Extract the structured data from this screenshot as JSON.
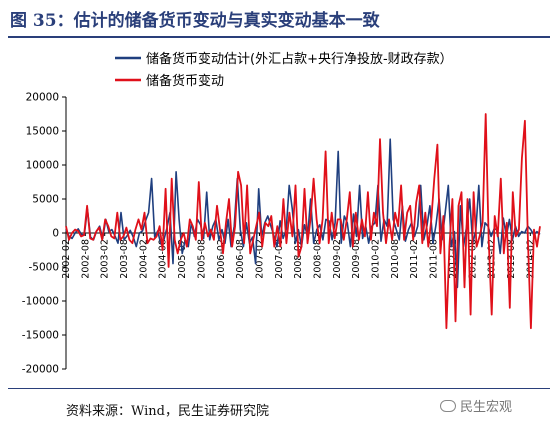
{
  "page": {
    "title": "图 35：估计的储备货币变动与真实变动基本一致",
    "source": "资料来源：Wind，民生证券研究院",
    "watermark": "民生宏观",
    "watermark_icon": "wechat-icon"
  },
  "chart_data": {
    "type": "line",
    "title": "",
    "xlabel": "",
    "ylabel": "",
    "ylim": [
      -20000,
      20000
    ],
    "yticks": [
      -20000,
      -15000,
      -10000,
      -5000,
      0,
      5000,
      10000,
      15000,
      20000
    ],
    "xtick_labels": [
      "2002-02",
      "2002-08",
      "2003-02",
      "2003-08",
      "2004-02",
      "2004-08",
      "2005-02",
      "2005-08",
      "2006-02",
      "2006-08",
      "2007-02",
      "2007-08",
      "2008-02",
      "2008-08",
      "2009-02",
      "2009-08",
      "2010-02",
      "2010-08",
      "2011-02",
      "2011-08",
      "2012-02",
      "2012-08",
      "2013-02",
      "2013-08",
      "2014-02"
    ],
    "x_start": "2002-02",
    "x_end": "2014-05",
    "grid": false,
    "legend_position": "top-right",
    "series": [
      {
        "name": "储备货币变动估计(外汇占款+央行净投放-财政存款）",
        "color": "#1f3f7f",
        "values": [
          500,
          -500,
          -800,
          0,
          600,
          -200,
          -300,
          3500,
          -600,
          -1000,
          300,
          1000,
          -800,
          2000,
          200,
          500,
          -400,
          -1500,
          3000,
          -1000,
          -400,
          400,
          -600,
          -2000,
          0,
          300,
          1800,
          3000,
          8000,
          -600,
          300,
          -1600,
          -1000,
          700,
          3000,
          -4500,
          9000,
          2000,
          -3000,
          -1000,
          -2000,
          1500,
          -500,
          2000,
          1200,
          -800,
          6000,
          -1000,
          1000,
          2000,
          -1000,
          500,
          -1500,
          2000,
          -2000,
          1000,
          8000,
          500,
          -2000,
          1500,
          -1500,
          -600,
          -4500,
          6500,
          -500,
          1500,
          2500,
          1000,
          -400,
          -2000,
          1800,
          -800,
          500,
          7000,
          3500,
          -1500,
          500,
          -2000,
          1200,
          -500,
          5000,
          -1500,
          500,
          1200,
          -1000,
          2000,
          1800,
          -1000,
          1500,
          12000,
          -1500,
          2500,
          1500,
          -2000,
          2800,
          -500,
          7000,
          -800,
          1000,
          -1500,
          1000,
          1500,
          7000,
          -1200,
          2000,
          1000,
          13800,
          2000,
          500,
          -1000,
          4000,
          -1200,
          500,
          1500,
          -500,
          1000,
          7000,
          -1000,
          1000,
          4000,
          -1500,
          1200,
          5000,
          -1000,
          3000,
          7000,
          -2000,
          200,
          -8000,
          4000,
          -2000,
          1000,
          5000,
          -1500,
          300,
          7000,
          -2000,
          1500,
          1000,
          -500,
          600,
          500,
          -3000,
          2200,
          -500,
          2000,
          -1000,
          1000,
          -500,
          200,
          0,
          1000,
          500,
          -300,
          200,
          -200
        ]
      },
      {
        "name": "储备货币变动",
        "color": "#e0101a",
        "values": [
          1000,
          -1000,
          0,
          500,
          300,
          -500,
          -300,
          4000,
          -800,
          -1000,
          200,
          800,
          -1000,
          2000,
          1000,
          -500,
          -800,
          3000,
          -1000,
          -500,
          800,
          -1000,
          -1500,
          500,
          2000,
          500,
          3000,
          -1500,
          -800,
          -1000,
          -500,
          1000,
          -2500,
          6500,
          -5000,
          8000,
          -1000,
          -3000,
          -1000,
          0,
          -2000,
          2000,
          1000,
          -1000,
          7500,
          -1000,
          1500,
          -500,
          500,
          -1000,
          4000,
          500,
          -3000,
          1500,
          5000,
          -2000,
          1000,
          9000,
          7000,
          -1500,
          7000,
          -3000,
          -1000,
          1000,
          3000,
          -2000,
          1500,
          1000,
          2500,
          -2000,
          1000,
          -2000,
          5000,
          -1500,
          3000,
          -500,
          7000,
          -3500,
          -2000,
          6500,
          -1500,
          2000,
          8000,
          2000,
          -1500,
          2000,
          12000,
          -1500,
          3000,
          -800,
          2000,
          2000,
          -1000,
          2000,
          6000,
          -2000,
          3000,
          -1000,
          2000,
          -500,
          6000,
          -1000,
          3000,
          1000,
          13800,
          3000,
          -1500,
          2000,
          -1000,
          3000,
          1000,
          7000,
          -1000,
          3000,
          4000,
          -1000,
          4500,
          7000,
          -1500,
          3000,
          -2000,
          2000,
          8000,
          13000,
          -3000,
          2500,
          -14000,
          -2000,
          5000,
          -13000,
          4000,
          6000,
          -8000,
          5000,
          -12000,
          6000,
          -2000,
          -500,
          1500,
          17500,
          -1000,
          -12000,
          2500,
          -500,
          8000,
          -3000,
          1500,
          -11000,
          6000,
          -500,
          500,
          11000,
          16500,
          -1000,
          -14000,
          500,
          -2000,
          1000
        ]
      }
    ]
  }
}
